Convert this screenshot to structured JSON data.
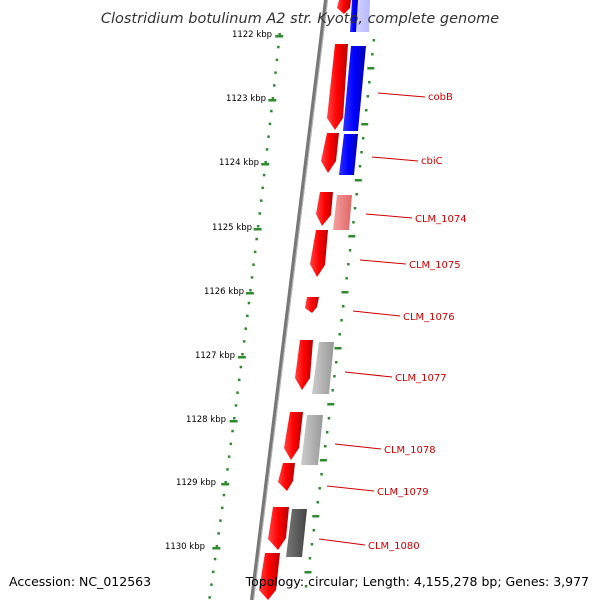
{
  "title": "Clostridium botulinum A2 str. Kyoto, complete genome",
  "footer": {
    "accession": "Accession: NC_012563",
    "summary": "Topology: circular; Length: 4,155,278 bp; Genes: 3,977"
  },
  "scale_ticks": [
    "1122 kbp",
    "1123 kbp",
    "1124 kbp",
    "1125 kbp",
    "1126 kbp",
    "1127 kbp",
    "1128 kbp",
    "1129 kbp",
    "1130 kbp"
  ],
  "gene_labels": [
    "cobB",
    "cbiC",
    "CLM_1074",
    "CLM_1075",
    "CLM_1076",
    "CLM_1077",
    "CLM_1078",
    "CLM_1079",
    "CLM_1080"
  ],
  "colors": {
    "cds": "#ff0000",
    "ring_blue": "#0000ff",
    "ring_pink": "#f08080",
    "ring_grey": "#aaaaaa",
    "ring_dark": "#555555",
    "tick_green": "#2e8b2e",
    "backbone": "#777777",
    "label_red": "#cc0000"
  }
}
